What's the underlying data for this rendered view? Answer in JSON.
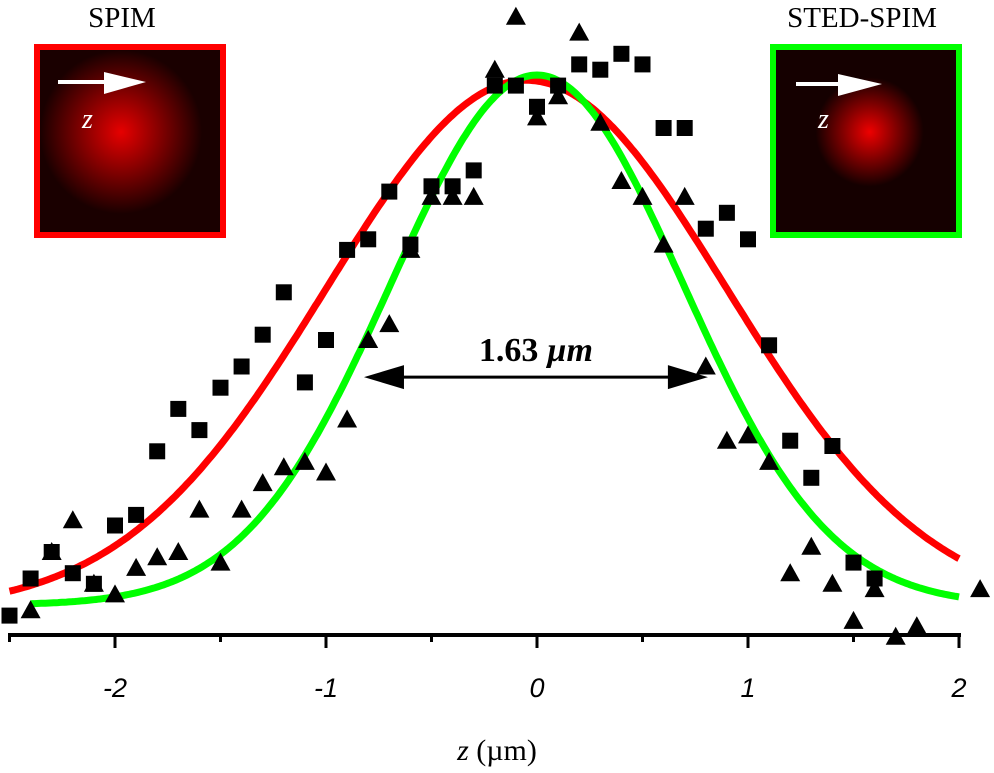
{
  "chart_data": {
    "type": "scatter",
    "title": "",
    "xlabel": "z (µm)",
    "xlabel_var": "z",
    "xlabel_unit": " (µm)",
    "ylabel": "",
    "xlim": [
      -2.5,
      2.05
    ],
    "ylim": [
      -0.07,
      1.15
    ],
    "x_ticks": [
      -2,
      -1,
      0,
      1,
      2
    ],
    "x_tick_labels": [
      "-2",
      "-1",
      "0",
      "1",
      "2"
    ],
    "grid": false,
    "series": [
      {
        "name": "SPIM data",
        "marker": "square",
        "color": "#000000",
        "x": [
          -2.5,
          -2.4,
          -2.3,
          -2.2,
          -2.1,
          -2.0,
          -1.9,
          -1.8,
          -1.7,
          -1.6,
          -1.5,
          -1.4,
          -1.3,
          -1.2,
          -1.1,
          -1.0,
          -0.9,
          -0.8,
          -0.7,
          -0.6,
          -0.5,
          -0.4,
          -0.3,
          -0.2,
          -0.1,
          0.0,
          0.1,
          0.2,
          0.3,
          0.4,
          0.5,
          0.6,
          0.7,
          0.8,
          0.9,
          1.0,
          1.1,
          1.2,
          1.3,
          1.4,
          1.5,
          1.6
        ],
        "y": [
          -0.02,
          0.05,
          0.1,
          0.06,
          0.04,
          0.15,
          0.17,
          0.29,
          0.37,
          0.33,
          0.41,
          0.45,
          0.51,
          0.59,
          0.42,
          0.5,
          0.67,
          0.69,
          0.78,
          0.68,
          0.79,
          0.79,
          0.82,
          0.98,
          0.98,
          0.94,
          0.98,
          1.02,
          1.01,
          1.04,
          1.02,
          0.9,
          0.9,
          0.71,
          0.74,
          0.69,
          0.49,
          0.31,
          0.24,
          0.3,
          0.08,
          0.05
        ]
      },
      {
        "name": "STED-SPIM data",
        "marker": "triangle",
        "color": "#000000",
        "x": [
          -2.4,
          -2.3,
          -2.2,
          -2.1,
          -2.0,
          -1.9,
          -1.8,
          -1.7,
          -1.6,
          -1.5,
          -1.4,
          -1.3,
          -1.2,
          -1.1,
          -1.0,
          -0.9,
          -0.8,
          -0.7,
          -0.6,
          -0.5,
          -0.4,
          -0.3,
          -0.2,
          -0.1,
          0.0,
          0.1,
          0.2,
          0.3,
          0.4,
          0.5,
          0.6,
          0.7,
          0.8,
          0.9,
          1.0,
          1.1,
          1.2,
          1.3,
          1.4,
          1.5,
          1.6,
          1.7,
          1.8,
          2.1
        ],
        "y": [
          -0.01,
          0.1,
          0.16,
          0.04,
          0.02,
          0.07,
          0.09,
          0.1,
          0.18,
          0.08,
          0.18,
          0.23,
          0.26,
          0.27,
          0.25,
          0.35,
          0.5,
          0.53,
          0.67,
          0.77,
          0.77,
          0.77,
          1.01,
          1.11,
          0.92,
          0.96,
          1.08,
          0.91,
          0.8,
          0.77,
          0.68,
          0.77,
          0.45,
          0.31,
          0.32,
          0.27,
          0.06,
          0.11,
          0.04,
          -0.03,
          0.03,
          -0.06,
          -0.04,
          0.03
        ]
      }
    ],
    "fits": [
      {
        "name": "SPIM fit",
        "type": "gaussian",
        "color": "#ff0000",
        "center": -0.05,
        "sigma": 0.95,
        "amplitude": 1.0,
        "offset": -0.01,
        "range": [
          -2.5,
          2.0
        ]
      },
      {
        "name": "STED-SPIM fit",
        "type": "gaussian",
        "color": "#00ff00",
        "center": 0.0,
        "sigma": 0.692,
        "amplitude": 1.0,
        "offset": 0.0,
        "range": [
          -2.4,
          2.0
        ]
      }
    ],
    "annotations": [
      {
        "text": "1.63 µm",
        "number": "1.63 ",
        "unit": "µm",
        "type": "double-arrow",
        "x_from": -0.82,
        "x_to": 0.81,
        "y": 0.43
      }
    ]
  },
  "insets": {
    "spim": {
      "label": "SPIM",
      "axis_label": "z",
      "border_color": "#ff0000"
    },
    "sted": {
      "label": "STED-SPIM",
      "axis_label": "z",
      "border_color": "#00ff00"
    }
  }
}
